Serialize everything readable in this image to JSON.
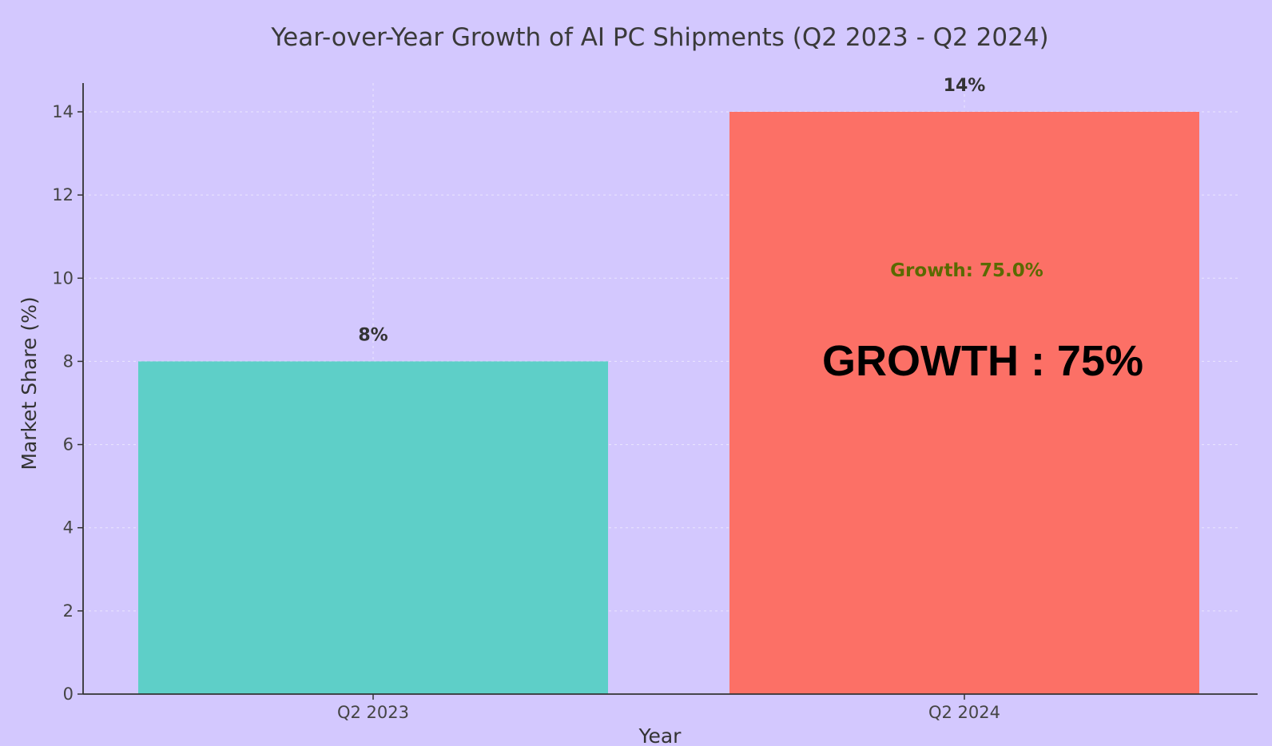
{
  "colors": {
    "background": "#d3c8fe",
    "bar_q2_2023": "#5ecfc8",
    "bar_q2_2024": "#fc7066",
    "growth_label": "#5a6a00"
  },
  "chart_data": {
    "type": "bar",
    "title": "Year-over-Year Growth of AI PC Shipments (Q2 2023 - Q2 2024)",
    "xlabel": "Year",
    "ylabel": "Market Share (%)",
    "categories": [
      "Q2 2023",
      "Q2 2024"
    ],
    "values": [
      8,
      14
    ],
    "value_labels": [
      "8%",
      "14%"
    ],
    "ylim": [
      0,
      14
    ],
    "yticks": [
      0,
      2,
      4,
      6,
      8,
      10,
      12,
      14
    ],
    "grid": true,
    "annotations": {
      "growth_small": "Growth: 75.0%",
      "growth_big": "GROWTH : 75%"
    }
  }
}
